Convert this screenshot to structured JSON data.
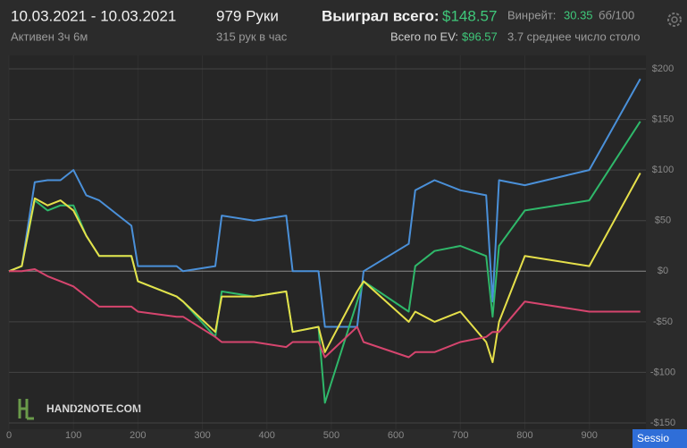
{
  "header": {
    "date_range": "10.03.2021 - 10.03.2021",
    "active": "Активен 3ч 6м",
    "hands": "979 Руки",
    "hands_per_hour": "315 рук в час",
    "won_label": "Выиграл всего:",
    "won_value": "$148.57",
    "ev_label": "Всего по EV:",
    "ev_value": "$96.57",
    "winrate_label": "Винрейт:",
    "winrate_value": "30.35",
    "winrate_unit": "бб/100",
    "tables": "3.7 среднее число столо",
    "logo": "HAND2NOTE.COM",
    "button": "Sessio"
  },
  "chart_data": {
    "type": "line",
    "x": [
      0,
      20,
      40,
      60,
      80,
      100,
      120,
      140,
      190,
      200,
      260,
      270,
      320,
      330,
      380,
      430,
      440,
      480,
      490,
      540,
      550,
      620,
      630,
      660,
      700,
      740,
      750,
      760,
      800,
      900,
      979
    ],
    "series": [
      {
        "color": "#4a90d9",
        "values": [
          0,
          5,
          88,
          90,
          90,
          100,
          75,
          70,
          45,
          5,
          5,
          0,
          5,
          55,
          50,
          55,
          0,
          0,
          -55,
          -55,
          0,
          27,
          80,
          90,
          80,
          75,
          -30,
          90,
          85,
          100,
          190
        ]
      },
      {
        "color": "#2fb86a",
        "values": [
          0,
          5,
          70,
          60,
          65,
          65,
          35,
          15,
          15,
          -10,
          -25,
          -30,
          -65,
          -20,
          -25,
          -20,
          -60,
          -55,
          -130,
          -30,
          -10,
          -40,
          5,
          20,
          25,
          15,
          -45,
          25,
          60,
          70,
          148
        ]
      },
      {
        "color": "#e6e04a",
        "values": [
          0,
          5,
          72,
          65,
          70,
          60,
          35,
          15,
          15,
          -10,
          -25,
          -30,
          -60,
          -25,
          -25,
          -20,
          -60,
          -55,
          -80,
          -20,
          -10,
          -50,
          -40,
          -50,
          -40,
          -70,
          -90,
          -50,
          15,
          5,
          97
        ]
      },
      {
        "color": "#d6456e",
        "values": [
          0,
          0,
          2,
          -5,
          -10,
          -15,
          -25,
          -35,
          -35,
          -40,
          -45,
          -45,
          -65,
          -70,
          -70,
          -75,
          -70,
          -70,
          -85,
          -55,
          -70,
          -85,
          -80,
          -80,
          -70,
          -65,
          -60,
          -60,
          -30,
          -40,
          -40
        ]
      }
    ],
    "xlim": [
      0,
      985
    ],
    "xticks": [
      0,
      100,
      200,
      300,
      400,
      500,
      600,
      700,
      800,
      900
    ],
    "ylim": [
      -150,
      200
    ],
    "yticks": [
      {
        "value": -150,
        "label": "-$150"
      },
      {
        "value": -100,
        "label": "-$100"
      },
      {
        "value": -50,
        "label": "-$50"
      },
      {
        "value": 0,
        "label": "$0"
      },
      {
        "value": 50,
        "label": "$50"
      },
      {
        "value": 100,
        "label": "$100"
      },
      {
        "value": 150,
        "label": "$150"
      },
      {
        "value": 200,
        "label": "$200"
      }
    ],
    "grid": true
  }
}
